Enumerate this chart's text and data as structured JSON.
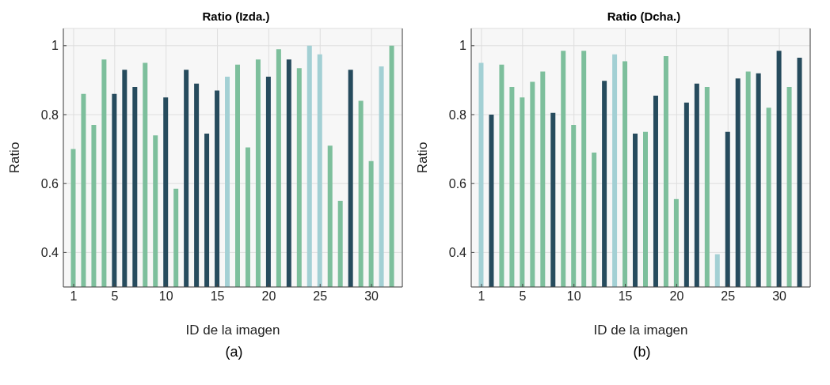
{
  "chart_data": [
    {
      "type": "bar",
      "title": "Ratio (Izda.)",
      "xlabel": "ID de la imagen",
      "ylabel": "Ratio",
      "annotations": [
        "(a)"
      ],
      "x": [
        1,
        2,
        3,
        4,
        5,
        6,
        7,
        8,
        9,
        10,
        11,
        12,
        13,
        14,
        15,
        16,
        17,
        18,
        19,
        20,
        21,
        22,
        23,
        24,
        25,
        26,
        27,
        28,
        29,
        30,
        31,
        32
      ],
      "values": [
        0.7,
        0.86,
        0.77,
        0.96,
        0.86,
        0.93,
        0.88,
        0.95,
        0.74,
        0.85,
        0.585,
        0.93,
        0.89,
        0.745,
        0.87,
        0.91,
        0.945,
        0.705,
        0.96,
        0.91,
        0.99,
        0.96,
        0.935,
        1.0,
        0.975,
        0.71,
        0.55,
        0.93,
        0.84,
        0.665,
        0.94,
        1.0
      ],
      "colors": [
        "#7dbf9c",
        "#7dbf9c",
        "#7dbf9c",
        "#7dbf9c",
        "#264b5d",
        "#264b5d",
        "#264b5d",
        "#7dbf9c",
        "#7dbf9c",
        "#264b5d",
        "#7dbf9c",
        "#264b5d",
        "#264b5d",
        "#264b5d",
        "#264b5d",
        "#a3d0d4",
        "#7dbf9c",
        "#7dbf9c",
        "#7dbf9c",
        "#264b5d",
        "#7dbf9c",
        "#264b5d",
        "#7dbf9c",
        "#a3d0d4",
        "#a3d0d4",
        "#7dbf9c",
        "#7dbf9c",
        "#264b5d",
        "#7dbf9c",
        "#7dbf9c",
        "#a3d0d4",
        "#7dbf9c"
      ],
      "xlim": [
        0,
        33
      ],
      "xticks": [
        1,
        5,
        10,
        15,
        20,
        25,
        30
      ],
      "ylim": [
        0.3,
        1.05
      ],
      "yticks": [
        0.4,
        0.6,
        0.8,
        1
      ],
      "grid": true,
      "legend": false
    },
    {
      "type": "bar",
      "title": "Ratio (Dcha.)",
      "xlabel": "ID de la imagen",
      "ylabel": "Ratio",
      "annotations": [
        "(b)"
      ],
      "x": [
        1,
        2,
        3,
        4,
        5,
        6,
        7,
        8,
        9,
        10,
        11,
        12,
        13,
        14,
        15,
        16,
        17,
        18,
        19,
        20,
        21,
        22,
        23,
        24,
        25,
        26,
        27,
        28,
        29,
        30,
        31,
        32
      ],
      "values": [
        0.95,
        0.8,
        0.945,
        0.88,
        0.85,
        0.895,
        0.925,
        0.805,
        0.985,
        0.77,
        0.985,
        0.69,
        0.898,
        0.975,
        0.955,
        0.745,
        0.75,
        0.855,
        0.97,
        0.555,
        0.835,
        0.89,
        0.88,
        0.395,
        0.75,
        0.905,
        0.925,
        0.92,
        0.82,
        0.985,
        0.88,
        0.965
      ],
      "colors": [
        "#a3d0d4",
        "#264b5d",
        "#7dbf9c",
        "#7dbf9c",
        "#7dbf9c",
        "#7dbf9c",
        "#7dbf9c",
        "#264b5d",
        "#7dbf9c",
        "#7dbf9c",
        "#7dbf9c",
        "#7dbf9c",
        "#264b5d",
        "#a3d0d4",
        "#7dbf9c",
        "#264b5d",
        "#7dbf9c",
        "#264b5d",
        "#7dbf9c",
        "#7dbf9c",
        "#264b5d",
        "#264b5d",
        "#7dbf9c",
        "#a3d0d4",
        "#264b5d",
        "#264b5d",
        "#7dbf9c",
        "#264b5d",
        "#7dbf9c",
        "#264b5d",
        "#7dbf9c",
        "#264b5d"
      ],
      "xlim": [
        0,
        33
      ],
      "xticks": [
        1,
        5,
        10,
        15,
        20,
        25,
        30
      ],
      "ylim": [
        0.3,
        1.05
      ],
      "yticks": [
        0.4,
        0.6,
        0.8,
        1
      ],
      "grid": true,
      "legend": false
    }
  ]
}
